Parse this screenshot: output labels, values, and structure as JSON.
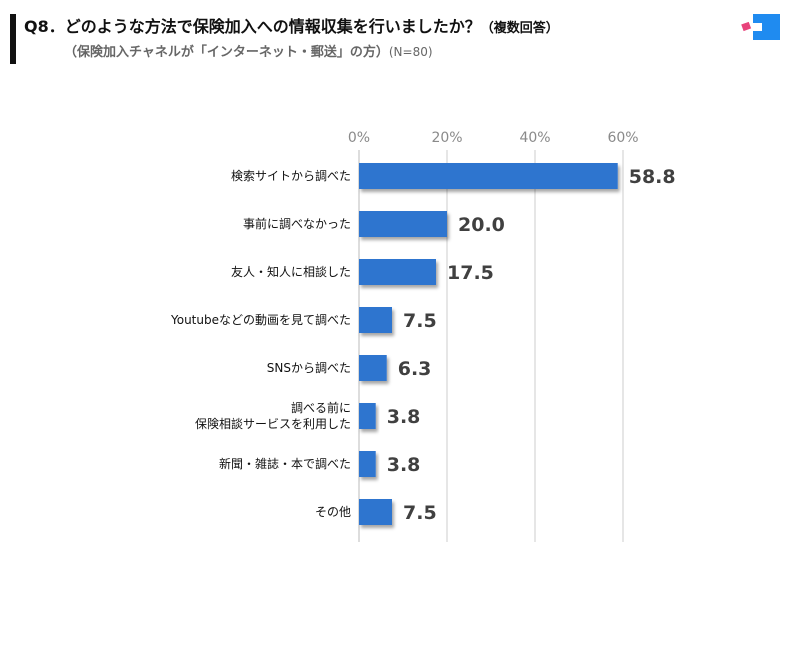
{
  "header": {
    "title": "Q8．どのような方法で保険加入への情報収集を行いましたか？",
    "title_suffix": "（複数回答）",
    "subtitle": "（保険加入チャネルが「インターネット・郵送」の方）",
    "sample_size": "(N=80)"
  },
  "colors": {
    "bar": "#2f74cf",
    "grid": "#cccccc",
    "tick": "#8a8a8a",
    "value": "#404040",
    "logo_blue": "#1f8bf0",
    "logo_pink": "#e8437b"
  },
  "logo": {
    "icon": "brand-logo-icon"
  },
  "chart_data": {
    "type": "bar",
    "orientation": "horizontal",
    "title": "",
    "xlabel": "",
    "ylabel": "",
    "xlim": [
      0,
      60
    ],
    "ticks": [
      "0%",
      "20%",
      "40%",
      "60%"
    ],
    "tick_values": [
      0,
      20,
      40,
      60
    ],
    "grid": true,
    "categories": [
      [
        "検索サイトから調べた"
      ],
      [
        "事前に調べなかった"
      ],
      [
        "友人・知人に相談した"
      ],
      [
        "Youtubeなどの動画を見て調べた"
      ],
      [
        "SNSから調べた"
      ],
      [
        "調べる前に",
        "保険相談サービスを利用した"
      ],
      [
        "新聞・雑誌・本で調べた"
      ],
      [
        "その他"
      ]
    ],
    "values": [
      58.8,
      20.0,
      17.5,
      7.5,
      6.3,
      3.8,
      3.8,
      7.5
    ],
    "value_labels": [
      "58.8",
      "20.0",
      "17.5",
      "7.5",
      "6.3",
      "3.8",
      "3.8",
      "7.5"
    ]
  }
}
